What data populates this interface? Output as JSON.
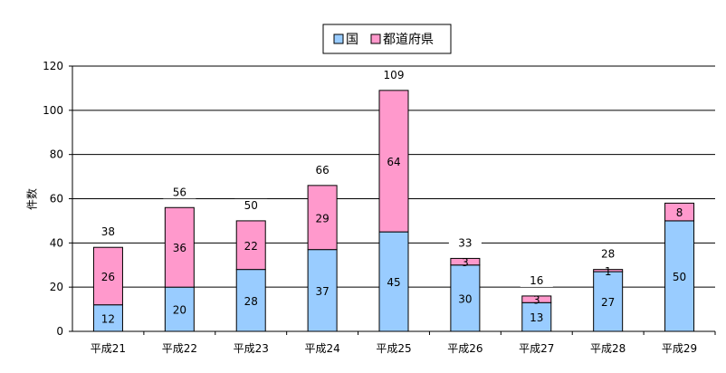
{
  "chart_data": {
    "type": "bar",
    "stacked": true,
    "title": "",
    "xlabel": "",
    "ylabel": "件数",
    "ylim": [
      0,
      120
    ],
    "yticks": [
      0,
      20,
      40,
      60,
      80,
      100,
      120
    ],
    "grid": true,
    "legend_position": "top",
    "categories": [
      "平成21",
      "平成22",
      "平成23",
      "平成24",
      "平成25",
      "平成26",
      "平成27",
      "平成28",
      "平成29"
    ],
    "series": [
      {
        "name": "国",
        "color": "#99ccff",
        "values": [
          12,
          20,
          28,
          37,
          45,
          30,
          13,
          27,
          50
        ]
      },
      {
        "name": "都道府県",
        "color": "#ff99cc",
        "values": [
          26,
          36,
          22,
          29,
          64,
          3,
          3,
          1,
          8
        ]
      }
    ],
    "totals": [
      "38",
      "56",
      "50",
      "66",
      "109",
      "33",
      "16",
      "28",
      ""
    ]
  }
}
